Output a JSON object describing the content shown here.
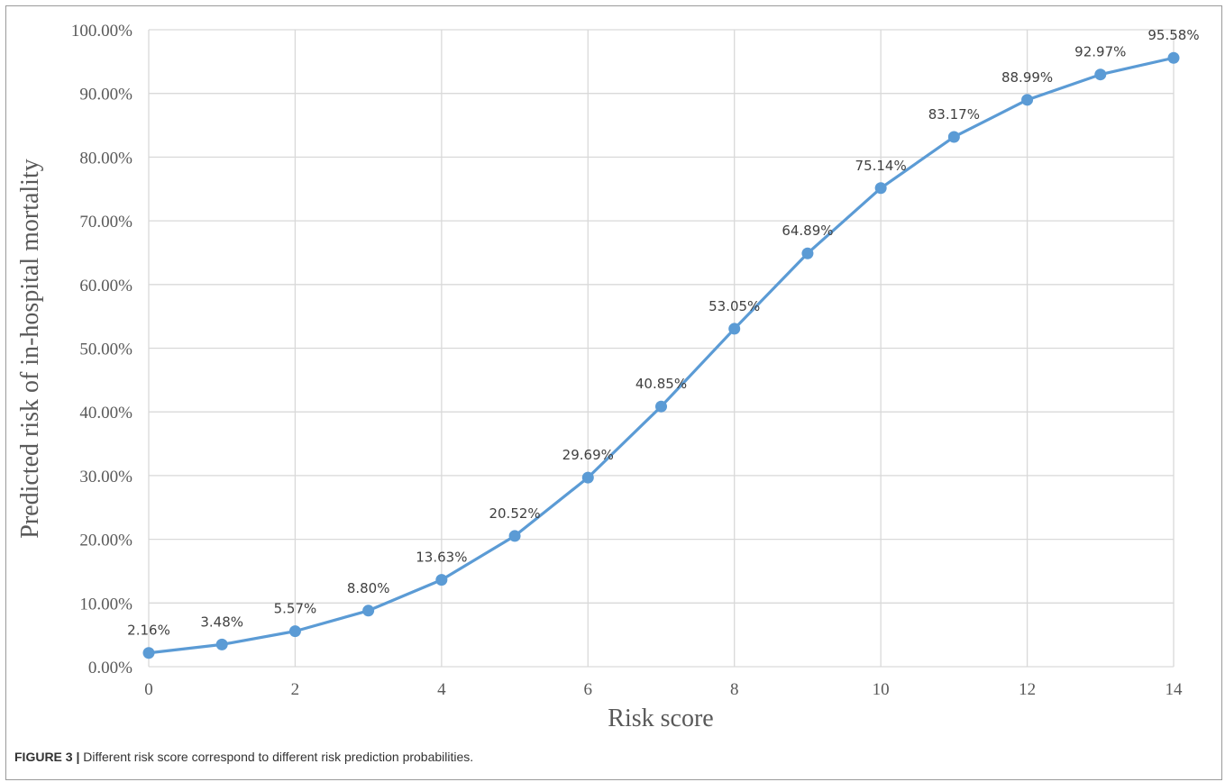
{
  "chart_data": {
    "type": "line",
    "title": "",
    "xlabel": "Risk score",
    "ylabel": "Predicted risk of in-hospital mortality",
    "x": [
      0,
      1,
      2,
      3,
      4,
      5,
      6,
      7,
      8,
      9,
      10,
      11,
      12,
      13,
      14
    ],
    "series": [
      {
        "values": [
          2.16,
          3.48,
          5.57,
          8.8,
          13.63,
          20.52,
          29.69,
          40.85,
          53.05,
          64.89,
          75.14,
          83.17,
          88.99,
          92.97,
          95.58
        ],
        "labels": [
          "2.16%",
          "3.48%",
          "5.57%",
          "8.80%",
          "13.63%",
          "20.52%",
          "29.69%",
          "40.85%",
          "53.05%",
          "64.89%",
          "75.14%",
          "83.17%",
          "88.99%",
          "92.97%",
          "95.58%"
        ]
      }
    ],
    "xlim": [
      0,
      14
    ],
    "ylim": [
      0,
      100
    ],
    "x_ticks": [
      "0",
      "2",
      "4",
      "6",
      "8",
      "10",
      "12",
      "14"
    ],
    "y_ticks": [
      "0.00%",
      "10.00%",
      "20.00%",
      "30.00%",
      "40.00%",
      "50.00%",
      "60.00%",
      "70.00%",
      "80.00%",
      "90.00%",
      "100.00%"
    ],
    "grid": true,
    "legend": "none",
    "line_color": "#5b9bd5",
    "grid_color": "#d9d9d9"
  },
  "caption": {
    "figure_label": "FIGURE 3 |",
    "text": " Different risk score correspond to different risk prediction probabilities."
  }
}
